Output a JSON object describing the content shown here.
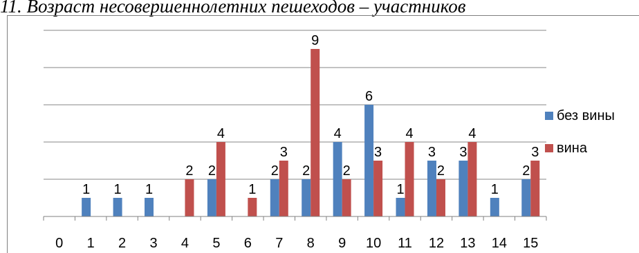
{
  "header": {
    "title": "11. Возраст несовершеннолетних пешеходов – участников"
  },
  "colors": {
    "series1": "#4f81bd",
    "series2": "#c0504d",
    "grid": "#868686",
    "axis": "#808080"
  },
  "chart_data": {
    "type": "bar",
    "title": "11. Возраст несовершеннолетних пешеходов – участников",
    "xlabel": "",
    "ylabel": "",
    "categories": [
      "0",
      "1",
      "2",
      "3",
      "4",
      "5",
      "6",
      "7",
      "8",
      "9",
      "10",
      "11",
      "12",
      "13",
      "14",
      "15"
    ],
    "series": [
      {
        "name": "без вины",
        "values": [
          0,
          1,
          1,
          1,
          0,
          2,
          0,
          2,
          2,
          4,
          6,
          1,
          3,
          3,
          1,
          2
        ]
      },
      {
        "name": "вина",
        "values": [
          0,
          0,
          0,
          0,
          2,
          4,
          1,
          3,
          9,
          2,
          3,
          4,
          2,
          4,
          0,
          3
        ]
      }
    ],
    "ylim": [
      0,
      10
    ],
    "grid": true,
    "legend": "right"
  }
}
